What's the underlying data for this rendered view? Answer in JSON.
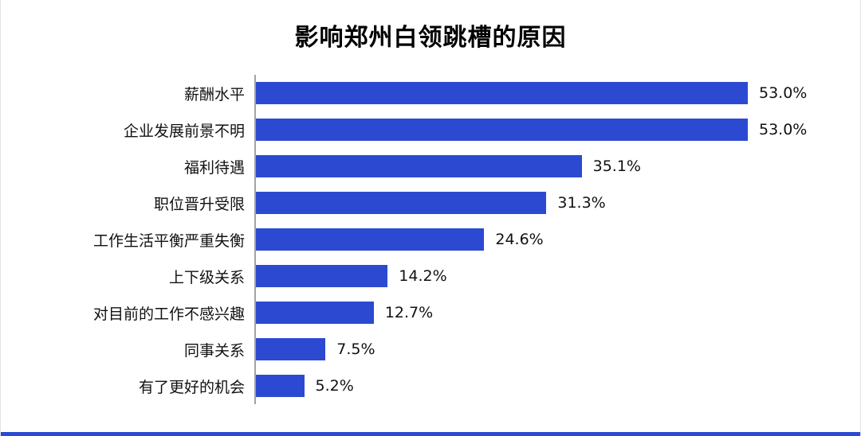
{
  "title": "影响郑州白领跳槽的原因",
  "colors": {
    "bar": "#2b4ad1",
    "axis": "#a3a3a3",
    "bottom_line": "#2b4ad1",
    "text": "#111111"
  },
  "chart_data": {
    "type": "bar",
    "orientation": "horizontal",
    "title": "影响郑州白领跳槽的原因",
    "categories": [
      "薪酬水平",
      "企业发展前景不明",
      "福利待遇",
      "职位晋升受限",
      "工作生活平衡严重失衡",
      "上下级关系",
      "对目前的工作不感兴趣",
      "同事关系",
      "有了更好的机会"
    ],
    "values": [
      53.0,
      53.0,
      35.1,
      31.3,
      24.6,
      14.2,
      12.7,
      7.5,
      5.2
    ],
    "value_labels": [
      "53.0%",
      "53.0%",
      "35.1%",
      "31.3%",
      "24.6%",
      "14.2%",
      "12.7%",
      "7.5%",
      "5.2%"
    ],
    "xlabel": "",
    "ylabel": "",
    "xlim": [
      0,
      53
    ],
    "grid": false,
    "legend": false
  }
}
